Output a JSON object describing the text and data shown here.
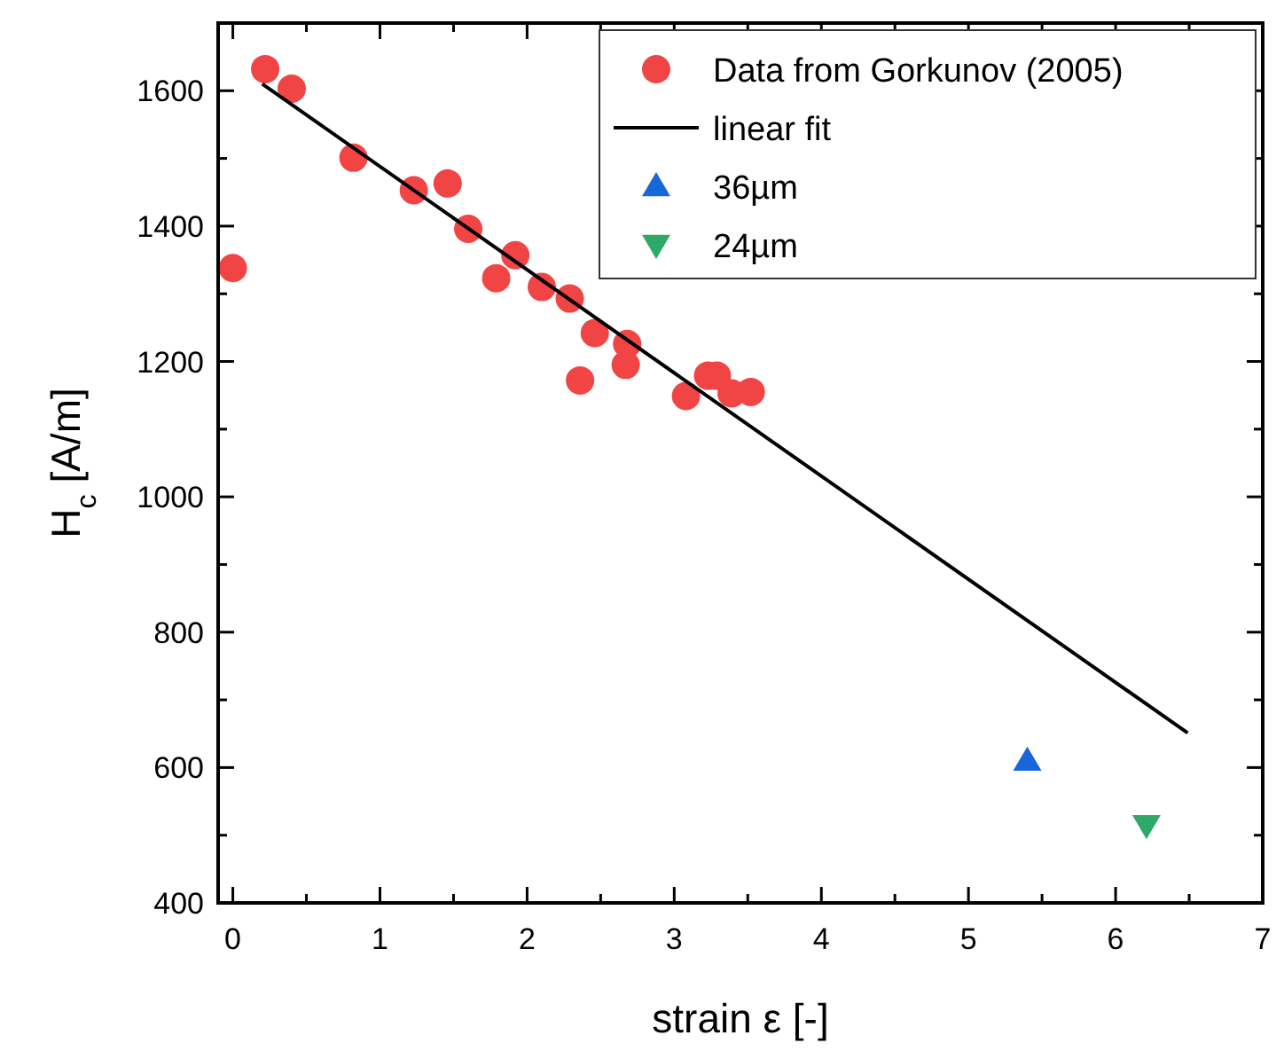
{
  "chart_data": {
    "type": "scatter",
    "xlabel": "strain ε [-]",
    "ylabel": "H$_{c}$ [A/m]",
    "xlim": [
      -0.1,
      7
    ],
    "xticks": [
      0,
      1,
      2,
      3,
      4,
      5,
      6,
      7
    ],
    "ylim": [
      400,
      1700
    ],
    "yticks": [
      400,
      600,
      800,
      1000,
      1200,
      1400,
      1600
    ],
    "legend": "top right",
    "grid": false,
    "series": [
      {
        "name": "Data from Gorkunov (2005)",
        "marker": "circle",
        "color": "#f14545",
        "x": [
          0,
          0.22,
          0.4,
          0.82,
          1.23,
          1.46,
          1.6,
          1.79,
          1.92,
          2.1,
          2.29,
          2.46,
          2.36,
          2.68,
          2.67,
          3.08,
          3.23,
          3.29,
          3.39,
          3.52
        ],
        "values": [
          1338,
          1632,
          1603,
          1501,
          1453,
          1463,
          1396,
          1323,
          1357,
          1310,
          1293,
          1242,
          1172,
          1226,
          1195,
          1149,
          1179,
          1179,
          1153,
          1155
        ]
      },
      {
        "name": "linear fit",
        "type": "line",
        "marker": "none",
        "line_style": "solid",
        "color": "#000000",
        "x": [
          0.2,
          6.49
        ],
        "values": [
          1610,
          651
        ]
      },
      {
        "name": "36µm",
        "marker": "triangle",
        "color": "#1866d8",
        "x": [
          5.4
        ],
        "values": [
          610
        ]
      },
      {
        "name": "24µm",
        "marker": "triangle-down",
        "color": "#2eaa68",
        "x": [
          6.21
        ],
        "values": [
          515
        ]
      }
    ]
  }
}
